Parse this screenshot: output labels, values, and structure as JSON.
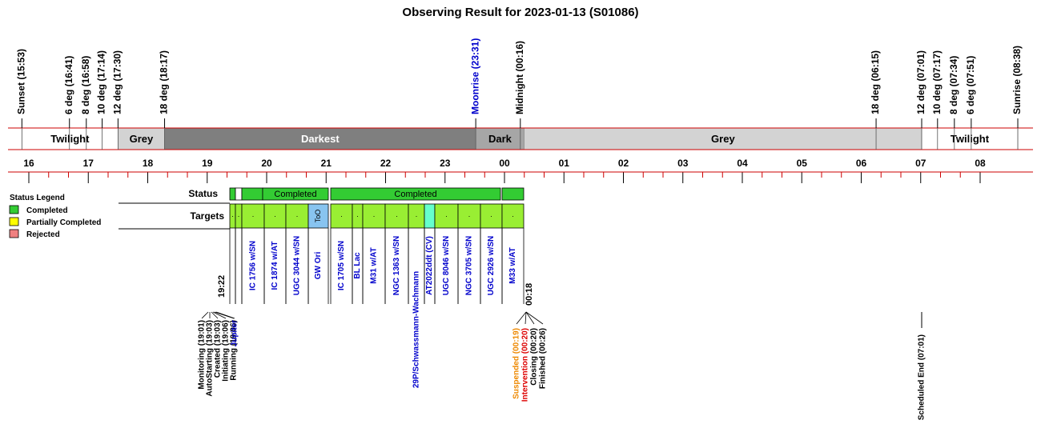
{
  "title": "Observing Result for 2023-01-13 (S01086)",
  "sky_events": [
    {
      "label": "Sunset (15:53)",
      "color": "#000000"
    },
    {
      "label": "6 deg (16:41)",
      "color": "#000000"
    },
    {
      "label": "8 deg (16:58)",
      "color": "#000000"
    },
    {
      "label": "10 deg (17:14)",
      "color": "#000000"
    },
    {
      "label": "12 deg (17:30)",
      "color": "#000000"
    },
    {
      "label": "18 deg (18:17)",
      "color": "#000000"
    },
    {
      "label": "Moonrise (23:31)",
      "color": "#0000cc"
    },
    {
      "label": "Midnight (00:16)",
      "color": "#000000"
    },
    {
      "label": "18 deg (06:15)",
      "color": "#000000"
    },
    {
      "label": "12 deg (07:01)",
      "color": "#000000"
    },
    {
      "label": "10 deg (07:17)",
      "color": "#000000"
    },
    {
      "label": "8 deg (07:34)",
      "color": "#000000"
    },
    {
      "label": "6 deg (07:51)",
      "color": "#000000"
    },
    {
      "label": "Sunrise (08:38)",
      "color": "#000000"
    }
  ],
  "sky_bands": [
    {
      "label": "Twilight",
      "from": "15:53",
      "to": "17:30",
      "color": "#ffffff",
      "text_color": "#000000"
    },
    {
      "label": "Grey",
      "from": "17:30",
      "to": "18:17",
      "color": "#d3d3d3",
      "text_color": "#000000"
    },
    {
      "label": "Darkest",
      "from": "18:17",
      "to": "23:31",
      "color": "#7f7f7f",
      "text_color": "#ffffff"
    },
    {
      "label": "Dark",
      "from": "23:31",
      "to": "00:20",
      "color": "#a6a6a6",
      "text_color": "#000000"
    },
    {
      "label": "Grey",
      "from": "00:20",
      "to": "07:01",
      "color": "#d3d3d3",
      "text_color": "#000000"
    },
    {
      "label": "Twilight",
      "from": "07:01",
      "to": "08:38",
      "color": "#ffffff",
      "text_color": "#000000"
    }
  ],
  "hours": [
    "16",
    "17",
    "18",
    "19",
    "20",
    "21",
    "22",
    "23",
    "00",
    "01",
    "02",
    "03",
    "04",
    "05",
    "06",
    "07",
    "08"
  ],
  "legend": {
    "title": "Status Legend",
    "items": [
      {
        "label": "Completed",
        "color": "#33cc33"
      },
      {
        "label": "Partially Completed",
        "color": "#ffff00"
      },
      {
        "label": "Rejected",
        "color": "#f08080"
      }
    ]
  },
  "rows": {
    "status": "Status",
    "targets": "Targets"
  },
  "status_segments": [
    {
      "color": "#33cc33"
    },
    {
      "color": "#ffffff"
    },
    {
      "color": "#33cc33"
    },
    {
      "color": "#33cc33",
      "label": "Completed"
    },
    {
      "color": "#33cc33",
      "label": "Completed"
    },
    {
      "color": "#33cc33"
    }
  ],
  "targets": [
    {
      "mark": ".",
      "color": "#99ee33"
    },
    {
      "mark": ".",
      "color": "#99ee33"
    },
    {
      "mark": ".",
      "color": "#99ee33",
      "name": "IC 1756 w/SN"
    },
    {
      "mark": ".",
      "color": "#99ee33",
      "name": "IC 1874 w/AT"
    },
    {
      "mark": ".",
      "color": "#99ee33",
      "name": "UGC 3044 w/SN"
    },
    {
      "mark": "ToO",
      "color": "#88c4f0",
      "name": "GW Ori"
    },
    {
      "mark": ".",
      "color": "#99ee33",
      "name": "IC 1705 w/SN"
    },
    {
      "mark": ".",
      "color": "#99ee33",
      "name": "BL Lac"
    },
    {
      "mark": ".",
      "color": "#99ee33",
      "name": "M31 w/AT"
    },
    {
      "mark": ".",
      "color": "#99ee33",
      "name": "NGC 1363 w/SN"
    },
    {
      "mark": ".",
      "color": "#99ee33",
      "name": "29P/Schwassmann-Wachmann"
    },
    {
      "color": "#66ffcc",
      "name": "AT2022ddt (CV)"
    },
    {
      "mark": ".",
      "color": "#99ee33",
      "name": "UGC 8046 w/SN"
    },
    {
      "mark": ".",
      "color": "#99ee33",
      "name": "NGC 3705 w/SN"
    },
    {
      "mark": ".",
      "color": "#99ee33",
      "name": "UGC 2926 w/SN"
    },
    {
      "mark": ".",
      "color": "#99ee33",
      "name": "M33 w/AT"
    }
  ],
  "start_time": "19:22",
  "end_time": "00:18",
  "log_events_start": [
    {
      "label": "Monitoring (19:01)",
      "color": "#000000"
    },
    {
      "label": "AutoStarting (19:03)",
      "color": "#000000"
    },
    {
      "label": "Created (19:03)",
      "color": "#000000"
    },
    {
      "label": "Initiating (19:06)",
      "color": "#000000"
    },
    {
      "label": "Running (19:06)",
      "color": "#000000"
    },
    {
      "label": "Jupiter",
      "color": "#0000cc"
    }
  ],
  "log_events_end": [
    {
      "label": "Suspended (00:19)",
      "color": "#ee8800"
    },
    {
      "label": "Intervention (00:20)",
      "color": "#dd0000"
    },
    {
      "label": "Closing (00:20)",
      "color": "#000000"
    },
    {
      "label": "Finished (00:26)",
      "color": "#000000"
    }
  ],
  "scheduled_end": "Scheduled End (07:01)"
}
